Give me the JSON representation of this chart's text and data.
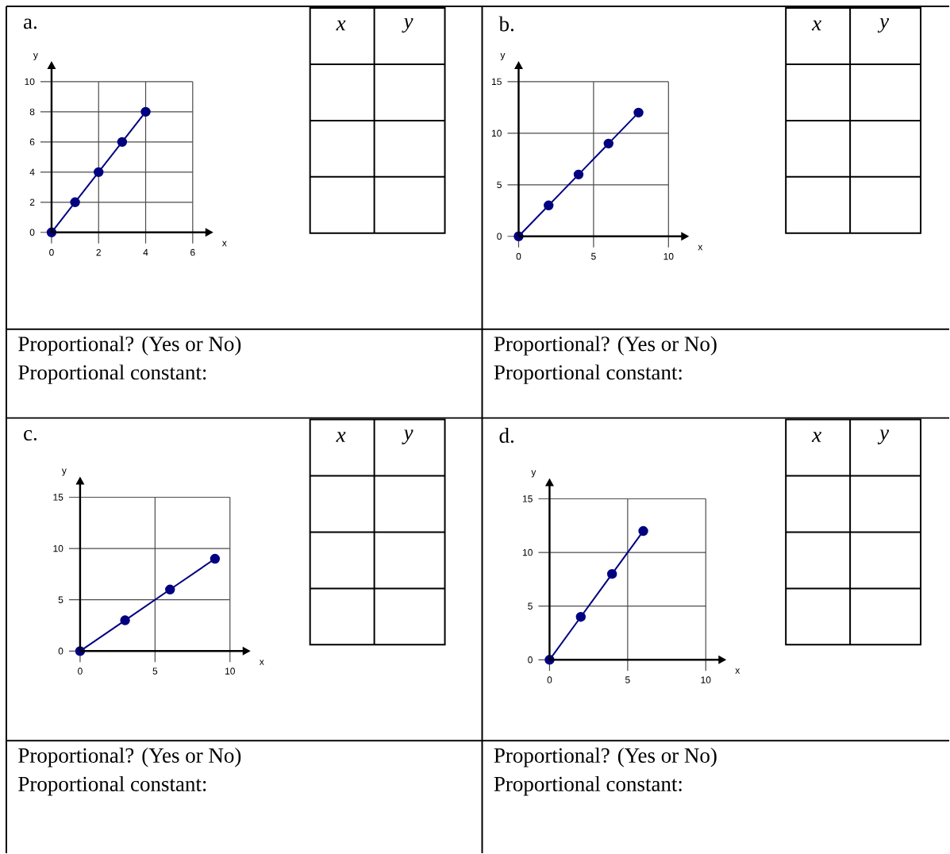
{
  "chart_data": [
    {
      "type": "line",
      "title": "a.",
      "xlabel": "x",
      "ylabel": "y",
      "x": [
        0,
        1,
        2,
        3,
        4
      ],
      "values": [
        0,
        2,
        4,
        6,
        8
      ],
      "color": "#000080",
      "xlim": [
        0,
        6
      ],
      "ylim": [
        0,
        10
      ],
      "xticks": [
        0,
        2,
        4,
        6
      ],
      "yticks": [
        0,
        2,
        4,
        6,
        8,
        10
      ],
      "grid": true,
      "marker": "circle",
      "annotations": [
        "Proportional? (Yes or No)",
        "Proportional constant:",
        "x",
        "y"
      ]
    },
    {
      "type": "line",
      "title": "b.",
      "xlabel": "x",
      "ylabel": "y",
      "x": [
        0,
        2,
        4,
        6,
        8
      ],
      "values": [
        0,
        3,
        6,
        9,
        12
      ],
      "color": "#000080",
      "xlim": [
        0,
        10
      ],
      "ylim": [
        0,
        15
      ],
      "xticks": [
        0,
        5,
        10
      ],
      "yticks": [
        0,
        5,
        10,
        15
      ],
      "grid": true,
      "marker": "circle",
      "annotations": [
        "Proportional? (Yes or No)",
        "Proportional constant:",
        "x",
        "y"
      ]
    },
    {
      "type": "line",
      "title": "c.",
      "xlabel": "x",
      "ylabel": "y",
      "x": [
        0,
        3,
        6,
        9
      ],
      "values": [
        0,
        3,
        6,
        9
      ],
      "color": "#000080",
      "xlim": [
        0,
        10
      ],
      "ylim": [
        0,
        15
      ],
      "xticks": [
        0,
        5,
        10
      ],
      "yticks": [
        0,
        5,
        10,
        15
      ],
      "grid": true,
      "marker": "circle",
      "annotations": [
        "Proportional? (Yes or No)",
        "Proportional constant:",
        "x",
        "y"
      ]
    },
    {
      "type": "line",
      "title": "d.",
      "xlabel": "x",
      "ylabel": "y",
      "x": [
        0,
        2,
        4,
        6
      ],
      "values": [
        0,
        4,
        8,
        12
      ],
      "color": "#000080",
      "xlim": [
        0,
        10
      ],
      "ylim": [
        0,
        15
      ],
      "xticks": [
        0,
        5,
        10
      ],
      "yticks": [
        0,
        5,
        10,
        15
      ],
      "grid": true,
      "marker": "circle",
      "annotations": [
        "Proportional? (Yes or No)",
        "Proportional constant:",
        "x",
        "y"
      ]
    }
  ]
}
